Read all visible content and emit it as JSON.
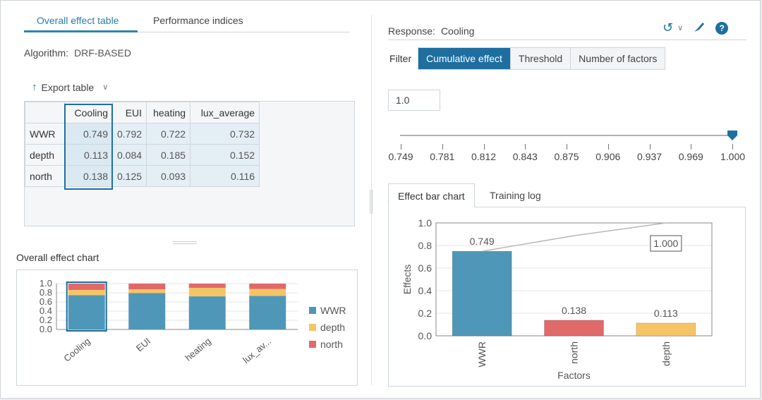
{
  "left": {
    "tabs": [
      "Overall effect table",
      "Performance indices"
    ],
    "algorithm_label": "Algorithm:",
    "algorithm_value": "DRF-BASED",
    "export_label": "Export table",
    "table": {
      "columns": [
        "Cooling",
        "EUI",
        "heating",
        "lux_average"
      ],
      "rows": [
        {
          "name": "WWR",
          "values": [
            "0.749",
            "0.792",
            "0.722",
            "0.732"
          ]
        },
        {
          "name": "depth",
          "values": [
            "0.113",
            "0.084",
            "0.185",
            "0.152"
          ]
        },
        {
          "name": "north",
          "values": [
            "0.138",
            "0.125",
            "0.093",
            "0.116"
          ]
        }
      ],
      "selected_column": "Cooling"
    },
    "overall_chart_title": "Overall effect chart"
  },
  "right": {
    "response_label": "Response:",
    "response_value": "Cooling",
    "filter_label": "Filter",
    "filter_options": [
      "Cumulative effect",
      "Threshold",
      "Number of factors"
    ],
    "filter_selected": "Cumulative effect",
    "threshold_value": "1.0",
    "slider": {
      "ticks": [
        "0.749",
        "0.781",
        "0.812",
        "0.843",
        "0.875",
        "0.906",
        "0.937",
        "0.969",
        "1.000"
      ],
      "value": 1.0
    },
    "chart_tabs": [
      "Effect bar chart",
      "Training log"
    ]
  },
  "colors": {
    "accent": "#1e6fa0",
    "wwr": "#4f97b8",
    "depth": "#f7c465",
    "north": "#e06a6a"
  },
  "chart_data": [
    {
      "type": "bar",
      "stacked": true,
      "categories": [
        "Cooling",
        "EUI",
        "heating",
        "lux_av..."
      ],
      "series": [
        {
          "name": "WWR",
          "values": [
            0.749,
            0.792,
            0.722,
            0.732
          ]
        },
        {
          "name": "depth",
          "values": [
            0.113,
            0.084,
            0.185,
            0.152
          ]
        },
        {
          "name": "north",
          "values": [
            0.138,
            0.125,
            0.093,
            0.116
          ]
        }
      ],
      "yticks": [
        "1.0",
        "0.8",
        "0.6",
        "0.4",
        "0.2",
        "0.0"
      ],
      "ylim": [
        0,
        1
      ],
      "legend": "right"
    },
    {
      "type": "bar",
      "categories": [
        "WWR",
        "north",
        "depth"
      ],
      "values": [
        0.749,
        0.138,
        0.113
      ],
      "value_labels": [
        "0.749",
        "0.138",
        "0.113"
      ],
      "cumulative": [
        0.749,
        0.887,
        1.0
      ],
      "cumulative_label": "1.000",
      "xlabel": "Factors",
      "ylabel": "Effects",
      "yticks": [
        "1.0",
        "0.8",
        "0.6",
        "0.4",
        "0.2",
        "0.0"
      ],
      "ylim": [
        0,
        1
      ]
    }
  ]
}
